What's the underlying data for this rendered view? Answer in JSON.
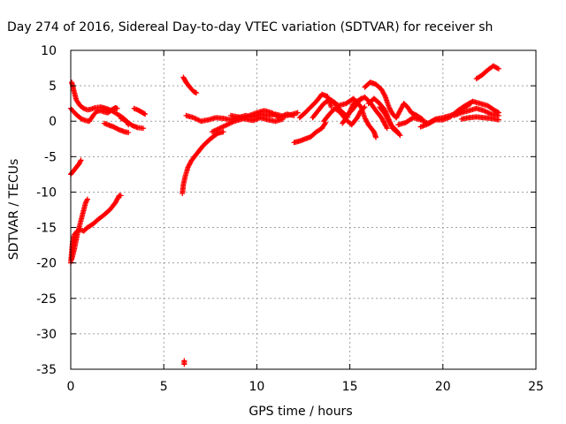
{
  "chart_data": {
    "type": "scatter",
    "title": "Day 274 of 2016, Sidereal Day-to-day VTEC variation (SDTVAR) for receiver sh",
    "xlabel": "GPS time / hours",
    "ylabel": "SDTVAR / TECUs",
    "xlim": [
      0,
      25
    ],
    "ylim": [
      -35,
      10
    ],
    "xticks": [
      0,
      5,
      10,
      15,
      20,
      25
    ],
    "yticks": [
      10,
      5,
      0,
      -5,
      -10,
      -15,
      -20,
      -25,
      -30,
      -35
    ],
    "grid": true,
    "legend": "none",
    "marker": "plus",
    "color": "#ff0000",
    "segments": [
      [
        [
          0.05,
          5.5
        ],
        [
          0.15,
          4.5
        ],
        [
          0.3,
          3.0
        ],
        [
          0.5,
          2.2
        ],
        [
          0.7,
          1.8
        ],
        [
          0.9,
          1.6
        ],
        [
          1.1,
          1.7
        ],
        [
          1.3,
          1.9
        ],
        [
          1.6,
          2.0
        ],
        [
          1.9,
          1.8
        ],
        [
          2.2,
          1.5
        ],
        [
          2.5,
          1.0
        ],
        [
          2.8,
          0.5
        ],
        [
          3.0,
          0.0
        ],
        [
          3.1,
          -0.5
        ]
      ],
      [
        [
          0.0,
          1.8
        ],
        [
          0.2,
          1.2
        ],
        [
          0.4,
          0.7
        ],
        [
          0.6,
          0.3
        ],
        [
          0.8,
          0.1
        ],
        [
          1.0,
          0.0
        ],
        [
          1.2,
          0.8
        ],
        [
          1.4,
          1.4
        ],
        [
          1.6,
          1.5
        ],
        [
          1.8,
          1.3
        ],
        [
          2.0,
          1.2
        ],
        [
          2.2,
          1.6
        ],
        [
          2.4,
          1.9
        ],
        [
          2.5,
          1.8
        ]
      ],
      [
        [
          1.8,
          -0.3
        ],
        [
          2.0,
          -0.5
        ],
        [
          2.3,
          -0.8
        ],
        [
          2.6,
          -1.2
        ],
        [
          2.9,
          -1.5
        ],
        [
          3.1,
          -1.6
        ]
      ],
      [
        [
          2.7,
          0.4
        ],
        [
          3.0,
          0.0
        ],
        [
          3.3,
          -0.6
        ],
        [
          3.6,
          -0.9
        ],
        [
          3.9,
          -1.0
        ]
      ],
      [
        [
          3.4,
          1.8
        ],
        [
          3.6,
          1.6
        ],
        [
          3.8,
          1.3
        ],
        [
          4.0,
          1.0
        ]
      ],
      [
        [
          0.0,
          -7.5
        ],
        [
          0.15,
          -7.0
        ],
        [
          0.3,
          -6.5
        ],
        [
          0.45,
          -6.0
        ],
        [
          0.55,
          -5.5
        ]
      ],
      [
        [
          0.0,
          -20.0
        ],
        [
          0.05,
          -18.5
        ],
        [
          0.1,
          -17.0
        ],
        [
          0.2,
          -16.0
        ],
        [
          0.35,
          -15.5
        ],
        [
          0.5,
          -15.3
        ],
        [
          0.7,
          -15.5
        ],
        [
          0.9,
          -15.0
        ],
        [
          1.2,
          -14.5
        ],
        [
          1.5,
          -13.8
        ],
        [
          1.8,
          -13.2
        ],
        [
          2.1,
          -12.5
        ],
        [
          2.4,
          -11.5
        ],
        [
          2.6,
          -10.5
        ],
        [
          2.7,
          -10.5
        ]
      ],
      [
        [
          0.05,
          -19.5
        ],
        [
          0.2,
          -18.0
        ],
        [
          0.35,
          -16.0
        ],
        [
          0.5,
          -14.5
        ],
        [
          0.65,
          -13.0
        ],
        [
          0.8,
          -11.5
        ],
        [
          0.9,
          -11.0
        ]
      ],
      [
        [
          6.05,
          6.2
        ],
        [
          6.2,
          5.5
        ],
        [
          6.4,
          4.8
        ],
        [
          6.6,
          4.2
        ],
        [
          6.75,
          4.0
        ]
      ],
      [
        [
          6.0,
          -10.2
        ],
        [
          6.05,
          -9.0
        ],
        [
          6.15,
          -7.8
        ],
        [
          6.3,
          -6.5
        ],
        [
          6.5,
          -5.5
        ],
        [
          6.8,
          -4.5
        ],
        [
          7.1,
          -3.5
        ],
        [
          7.5,
          -2.5
        ],
        [
          7.9,
          -1.7
        ],
        [
          8.2,
          -1.5
        ]
      ],
      [
        [
          6.1,
          -33.8
        ],
        [
          6.1,
          -34.3
        ]
      ],
      [
        [
          6.2,
          0.8
        ],
        [
          6.6,
          0.5
        ],
        [
          7.0,
          0.0
        ],
        [
          7.4,
          0.2
        ],
        [
          7.8,
          0.5
        ],
        [
          8.2,
          0.4
        ],
        [
          8.6,
          0.2
        ],
        [
          9.0,
          0.5
        ],
        [
          9.4,
          0.8
        ],
        [
          9.8,
          0.6
        ],
        [
          10.2,
          1.0
        ],
        [
          10.6,
          0.8
        ],
        [
          11.0,
          1.0
        ],
        [
          11.4,
          0.7
        ],
        [
          11.8,
          0.9
        ],
        [
          12.2,
          1.2
        ]
      ],
      [
        [
          7.6,
          -1.5
        ],
        [
          8.0,
          -1.0
        ],
        [
          8.4,
          -0.5
        ],
        [
          8.8,
          0.0
        ],
        [
          9.2,
          0.3
        ],
        [
          9.6,
          0.8
        ],
        [
          10.0,
          1.2
        ],
        [
          10.4,
          1.5
        ],
        [
          10.8,
          1.2
        ],
        [
          11.2,
          0.5
        ],
        [
          11.6,
          1.0
        ],
        [
          12.0,
          0.8
        ]
      ],
      [
        [
          8.6,
          0.8
        ],
        [
          9.0,
          0.6
        ],
        [
          9.4,
          0.3
        ],
        [
          9.8,
          0.1
        ],
        [
          10.2,
          0.5
        ],
        [
          10.6,
          0.2
        ],
        [
          11.0,
          0.0
        ],
        [
          11.4,
          0.3
        ]
      ],
      [
        [
          12.0,
          -3.0
        ],
        [
          12.3,
          -2.8
        ],
        [
          12.6,
          -2.5
        ],
        [
          12.9,
          -2.2
        ],
        [
          13.2,
          -1.5
        ],
        [
          13.5,
          -1.0
        ],
        [
          13.7,
          -0.2
        ]
      ],
      [
        [
          12.3,
          0.5
        ],
        [
          12.6,
          1.2
        ],
        [
          12.9,
          2.0
        ],
        [
          13.2,
          2.8
        ],
        [
          13.5,
          3.8
        ],
        [
          13.8,
          3.5
        ],
        [
          14.0,
          2.0
        ]
      ],
      [
        [
          13.0,
          0.5
        ],
        [
          13.3,
          1.5
        ],
        [
          13.6,
          2.5
        ],
        [
          13.9,
          3.0
        ],
        [
          14.2,
          2.5
        ],
        [
          14.5,
          1.5
        ],
        [
          14.8,
          0.8
        ],
        [
          15.1,
          1.5
        ],
        [
          15.4,
          2.5
        ],
        [
          15.6,
          3.2
        ]
      ],
      [
        [
          13.6,
          0.0
        ],
        [
          13.9,
          1.0
        ],
        [
          14.2,
          1.8
        ],
        [
          14.5,
          1.2
        ],
        [
          14.8,
          0.2
        ],
        [
          15.1,
          -0.5
        ],
        [
          15.4,
          0.5
        ],
        [
          15.6,
          1.5
        ],
        [
          15.8,
          2.0
        ]
      ],
      [
        [
          14.0,
          3.0
        ],
        [
          14.4,
          2.2
        ],
        [
          14.8,
          2.5
        ],
        [
          15.2,
          3.2
        ],
        [
          15.6,
          2.0
        ],
        [
          15.8,
          0.5
        ],
        [
          16.0,
          -0.5
        ],
        [
          16.3,
          -1.5
        ],
        [
          16.4,
          -2.3
        ]
      ],
      [
        [
          14.6,
          -0.3
        ],
        [
          14.9,
          0.8
        ],
        [
          15.2,
          2.5
        ],
        [
          15.5,
          3.0
        ],
        [
          15.8,
          3.4
        ],
        [
          16.1,
          2.6
        ],
        [
          16.4,
          1.5
        ],
        [
          16.7,
          0.5
        ],
        [
          16.9,
          -0.5
        ],
        [
          17.0,
          -1.0
        ]
      ],
      [
        [
          15.8,
          4.8
        ],
        [
          16.1,
          5.5
        ],
        [
          16.4,
          5.2
        ],
        [
          16.7,
          4.5
        ],
        [
          16.9,
          3.5
        ],
        [
          17.1,
          2.0
        ],
        [
          17.3,
          1.0
        ],
        [
          17.5,
          0.5
        ]
      ],
      [
        [
          16.0,
          2.5
        ],
        [
          16.3,
          3.2
        ],
        [
          16.6,
          2.5
        ],
        [
          16.9,
          1.5
        ],
        [
          17.1,
          0.2
        ],
        [
          17.3,
          -1.0
        ],
        [
          17.5,
          -1.5
        ]
      ],
      [
        [
          16.6,
          2.0
        ],
        [
          16.9,
          1.0
        ],
        [
          17.2,
          -0.5
        ],
        [
          17.5,
          -1.3
        ],
        [
          17.7,
          -2.0
        ]
      ],
      [
        [
          17.5,
          0.5
        ],
        [
          17.7,
          1.5
        ],
        [
          17.9,
          2.5
        ],
        [
          18.1,
          2.0
        ],
        [
          18.3,
          1.2
        ],
        [
          18.6,
          0.8
        ],
        [
          18.9,
          0.3
        ]
      ],
      [
        [
          17.6,
          -0.5
        ],
        [
          18.0,
          -0.2
        ],
        [
          18.4,
          0.5
        ],
        [
          18.8,
          0.2
        ],
        [
          19.2,
          -0.3
        ],
        [
          19.6,
          0.3
        ],
        [
          20.0,
          0.5
        ],
        [
          20.4,
          0.8
        ],
        [
          20.8,
          1.2
        ],
        [
          21.2,
          2.0
        ],
        [
          21.5,
          2.5
        ]
      ],
      [
        [
          18.8,
          -0.8
        ],
        [
          19.2,
          -0.4
        ],
        [
          19.6,
          0.2
        ],
        [
          20.0,
          0.2
        ],
        [
          20.4,
          0.6
        ],
        [
          20.8,
          1.5
        ],
        [
          21.2,
          2.2
        ],
        [
          21.6,
          2.8
        ],
        [
          22.0,
          2.5
        ],
        [
          22.4,
          2.2
        ],
        [
          22.8,
          1.5
        ],
        [
          23.0,
          1.2
        ]
      ],
      [
        [
          20.6,
          0.8
        ],
        [
          21.0,
          1.2
        ],
        [
          21.4,
          1.5
        ],
        [
          21.8,
          1.8
        ],
        [
          22.2,
          1.5
        ],
        [
          22.6,
          1.0
        ],
        [
          23.0,
          0.8
        ]
      ],
      [
        [
          21.0,
          0.3
        ],
        [
          21.4,
          0.5
        ],
        [
          21.8,
          0.6
        ],
        [
          22.2,
          0.5
        ],
        [
          22.6,
          0.4
        ],
        [
          23.0,
          0.2
        ]
      ],
      [
        [
          21.8,
          6.0
        ],
        [
          22.1,
          6.5
        ],
        [
          22.4,
          7.2
        ],
        [
          22.7,
          7.8
        ],
        [
          23.0,
          7.4
        ]
      ]
    ]
  }
}
